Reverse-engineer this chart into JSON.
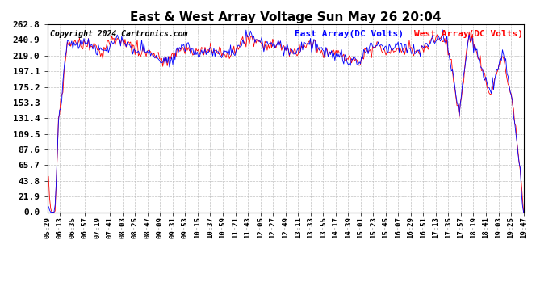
{
  "title": "East & West Array Voltage Sun May 26 20:04",
  "copyright": "Copyright 2024 Cartronics.com",
  "legend_east": "East Array(DC Volts)",
  "legend_west": "West Array(DC Volts)",
  "color_east": "#0000ff",
  "color_west": "#ff0000",
  "ylim": [
    0.0,
    262.8
  ],
  "yticks": [
    0.0,
    21.9,
    43.8,
    65.7,
    87.6,
    109.5,
    131.4,
    153.3,
    175.2,
    197.1,
    219.0,
    240.9,
    262.8
  ],
  "bg_color": "#ffffff",
  "plot_bg_color": "#ffffff",
  "grid_color": "#aaaaaa",
  "title_fontsize": 11,
  "legend_fontsize": 8,
  "tick_fontsize": 6.5,
  "ytick_fontsize": 8,
  "copyright_fontsize": 7,
  "xtick_labels": [
    "05:29",
    "06:13",
    "06:35",
    "06:57",
    "07:19",
    "07:41",
    "08:03",
    "08:25",
    "08:47",
    "09:09",
    "09:31",
    "09:53",
    "10:15",
    "10:37",
    "10:59",
    "11:21",
    "11:43",
    "12:05",
    "12:27",
    "12:49",
    "13:11",
    "13:33",
    "13:55",
    "14:17",
    "14:39",
    "15:01",
    "15:23",
    "15:45",
    "16:07",
    "16:29",
    "16:51",
    "17:13",
    "17:35",
    "17:57",
    "18:19",
    "18:41",
    "19:03",
    "19:25",
    "19:47"
  ]
}
